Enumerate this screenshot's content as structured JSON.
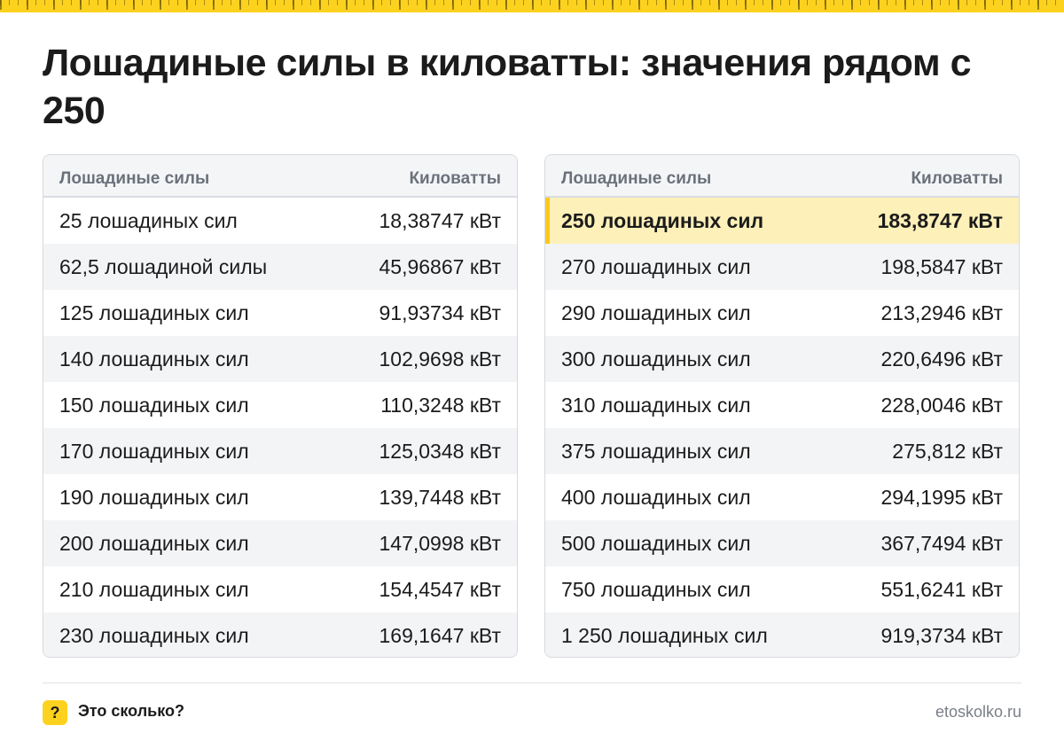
{
  "title": "Лошадиные силы в киловатты: значения рядом с 250",
  "columns": {
    "hp": "Лошадиные силы",
    "kw": "Киловатты"
  },
  "colors": {
    "accent": "#fdd21f",
    "highlight": "#fdf0b8"
  },
  "tables": [
    {
      "rows": [
        {
          "hp": "25 лошадиных сил",
          "kw": "18,38747 кВт"
        },
        {
          "hp": "62,5 лошадиной силы",
          "kw": "45,96867 кВт"
        },
        {
          "hp": "125 лошадиных сил",
          "kw": "91,93734 кВт"
        },
        {
          "hp": "140 лошадиных сил",
          "kw": "102,9698 кВт"
        },
        {
          "hp": "150 лошадиных сил",
          "kw": "110,3248 кВт"
        },
        {
          "hp": "170 лошадиных сил",
          "kw": "125,0348 кВт"
        },
        {
          "hp": "190 лошадиных сил",
          "kw": "139,7448 кВт"
        },
        {
          "hp": "200 лошадиных сил",
          "kw": "147,0998 кВт"
        },
        {
          "hp": "210 лошадиных сил",
          "kw": "154,4547 кВт"
        },
        {
          "hp": "230 лошадиных сил",
          "kw": "169,1647 кВт"
        }
      ]
    },
    {
      "rows": [
        {
          "hp": "250 лошадиных сил",
          "kw": "183,8747 кВт",
          "highlight": true
        },
        {
          "hp": "270 лошадиных сил",
          "kw": "198,5847 кВт"
        },
        {
          "hp": "290 лошадиных сил",
          "kw": "213,2946 кВт"
        },
        {
          "hp": "300 лошадиных сил",
          "kw": "220,6496 кВт"
        },
        {
          "hp": "310 лошадиных сил",
          "kw": "228,0046 кВт"
        },
        {
          "hp": "375 лошадиных сил",
          "kw": "275,812 кВт"
        },
        {
          "hp": "400 лошадиных сил",
          "kw": "294,1995 кВт"
        },
        {
          "hp": "500 лошадиных сил",
          "kw": "367,7494 кВт"
        },
        {
          "hp": "750 лошадиных сил",
          "kw": "551,6241 кВт"
        },
        {
          "hp": "1 250 лошадиных сил",
          "kw": "919,3734 кВт"
        }
      ]
    }
  ],
  "footer": {
    "badge": "?",
    "brand": "Это сколько?",
    "site": "etoskolko.ru"
  }
}
